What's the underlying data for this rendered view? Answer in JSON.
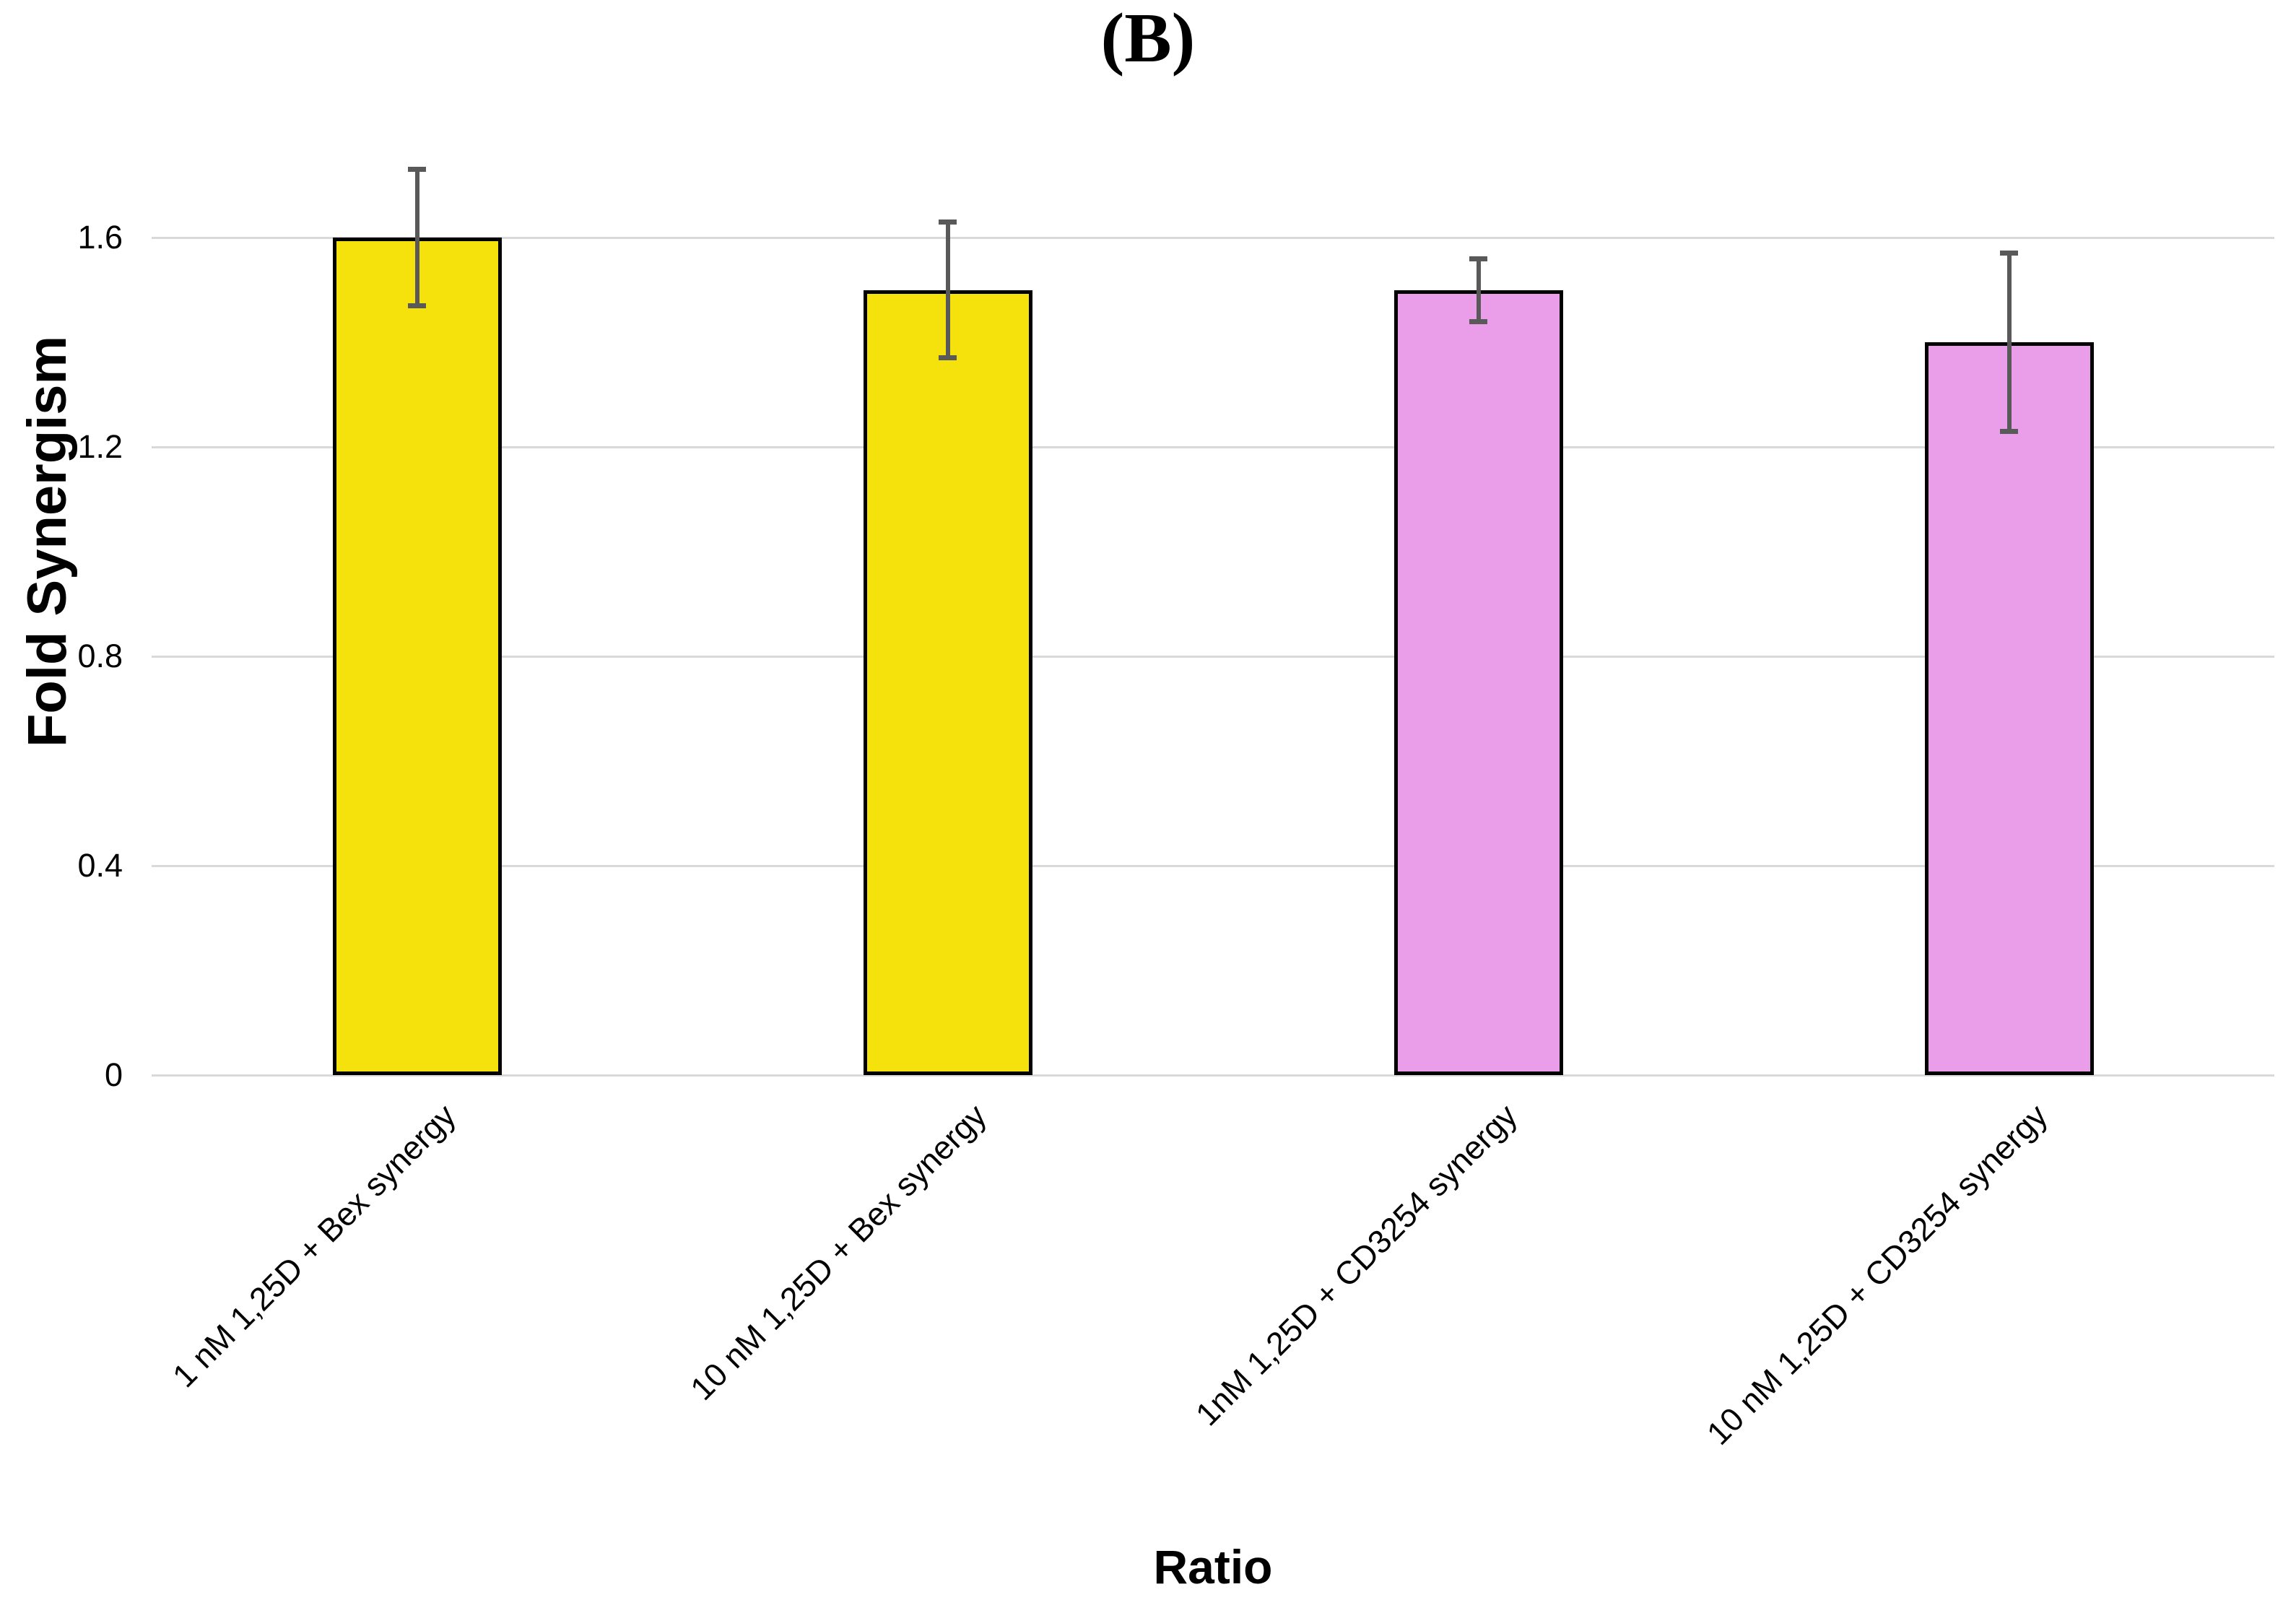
{
  "figure": {
    "panel_label": "(B)"
  },
  "chart_data": {
    "type": "bar",
    "title": "(B)",
    "xlabel": "Ratio",
    "ylabel": "Fold Synergism",
    "categories": [
      "1 nM 1,25D + Bex synergy",
      "10 nM 1,25D + Bex synergy",
      "1nM 1,25D + CD3254 synergy",
      "10 nM 1,25D + CD3254 synergy"
    ],
    "values": [
      1.6,
      1.5,
      1.5,
      1.4
    ],
    "error_bars": [
      0.13,
      0.13,
      0.06,
      0.17
    ],
    "bar_colors": [
      "#F5E10C",
      "#F5E10C",
      "#EA9DE8",
      "#EA9DE8"
    ],
    "bar_border_color": "#000000",
    "error_bar_color": "#595959",
    "gridline_color": "#D9D9D9",
    "y_ticks": [
      0,
      0.4,
      0.8,
      1.2,
      1.6
    ],
    "y_tick_labels": [
      "0",
      "0.4",
      "0.8",
      "1.2",
      "1.6"
    ],
    "ylim": [
      0,
      1.8
    ],
    "grid": true,
    "legend": "none",
    "category_label_rotation_deg": -45
  }
}
